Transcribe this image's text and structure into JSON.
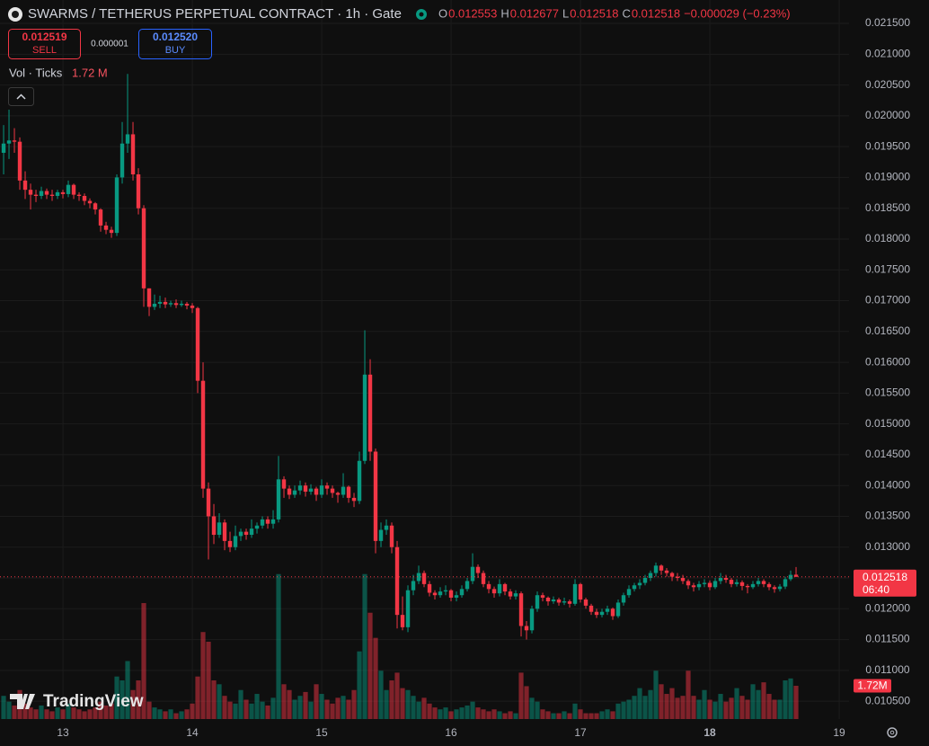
{
  "chart_data": {
    "type": "candlestick",
    "legend": {
      "title": "SWARMS / TETHERUS PERPETUAL CONTRACT · 1h · Gate",
      "ohlc": [
        {
          "label": "O",
          "value": "0.012553"
        },
        {
          "label": "H",
          "value": "0.012677"
        },
        {
          "label": "L",
          "value": "0.012518"
        },
        {
          "label": "C",
          "value": "0.012518"
        }
      ],
      "change": "−0.000029 (−0.23%)"
    },
    "trade": {
      "sell_price": "0.012519",
      "sell": "SELL",
      "spread": "0.000001",
      "buy_price": "0.012520",
      "buy": "BUY"
    },
    "volume_legend": {
      "label": "Vol · Ticks",
      "value": "1.72 M"
    },
    "logo": "TradingView",
    "up_color": "#089981",
    "down_color": "#f23645",
    "xlim": [
      -0.67,
      156.83
    ],
    "xticks": [
      {
        "value": 11,
        "label": "13"
      },
      {
        "value": 35,
        "label": "14"
      },
      {
        "value": 59,
        "label": "15"
      },
      {
        "value": 83,
        "label": "16"
      },
      {
        "value": 107,
        "label": "17"
      },
      {
        "value": 131,
        "label": "18"
      },
      {
        "value": 155,
        "label": "19"
      }
    ],
    "ylim": [
      0.01021,
      0.02188
    ],
    "yticks": [
      {
        "value": 0.0105,
        "label": "0.010500"
      },
      {
        "value": 0.011,
        "label": "0.011000"
      },
      {
        "value": 0.0115,
        "label": "0.011500"
      },
      {
        "value": 0.012,
        "label": "0.012000"
      },
      {
        "value": 0.0125,
        "label": "0.012500"
      },
      {
        "value": 0.013,
        "label": "0.013000"
      },
      {
        "value": 0.0135,
        "label": "0.013500"
      },
      {
        "value": 0.014,
        "label": "0.014000"
      },
      {
        "value": 0.0145,
        "label": "0.014500"
      },
      {
        "value": 0.015,
        "label": "0.015000"
      },
      {
        "value": 0.0155,
        "label": "0.015500"
      },
      {
        "value": 0.016,
        "label": "0.016000"
      },
      {
        "value": 0.0165,
        "label": "0.016500"
      },
      {
        "value": 0.017,
        "label": "0.017000"
      },
      {
        "value": 0.0175,
        "label": "0.017500"
      },
      {
        "value": 0.018,
        "label": "0.018000"
      },
      {
        "value": 0.0185,
        "label": "0.018500"
      },
      {
        "value": 0.019,
        "label": "0.019000"
      },
      {
        "value": 0.0195,
        "label": "0.019500"
      },
      {
        "value": 0.02,
        "label": "0.020000"
      },
      {
        "value": 0.0205,
        "label": "0.020500"
      },
      {
        "value": 0.021,
        "label": "0.021000"
      },
      {
        "value": 0.0215,
        "label": "0.021500"
      }
    ],
    "volume_lim": [
      0,
      37.2
    ],
    "price_tag": {
      "value": 0.012518,
      "label": "0.012518",
      "time": "06:40"
    },
    "volume_tag": "1.72M",
    "candles": [
      [
        0.0194,
        0.01985,
        0.01905,
        0.01955
      ],
      [
        0.01955,
        0.0201,
        0.0193,
        0.0196
      ],
      [
        0.0196,
        0.0198,
        0.0194,
        0.01958
      ],
      [
        0.01958,
        0.01965,
        0.0188,
        0.01895
      ],
      [
        0.01895,
        0.0191,
        0.01865,
        0.0188
      ],
      [
        0.0188,
        0.0189,
        0.01848,
        0.01872
      ],
      [
        0.01872,
        0.0188,
        0.0186,
        0.0187
      ],
      [
        0.0187,
        0.01885,
        0.01865,
        0.01878
      ],
      [
        0.01878,
        0.01882,
        0.01865,
        0.01872
      ],
      [
        0.01872,
        0.0188,
        0.01862,
        0.0187
      ],
      [
        0.0187,
        0.0188,
        0.01865,
        0.01876
      ],
      [
        0.01876,
        0.0188,
        0.01866,
        0.01873
      ],
      [
        0.01873,
        0.01895,
        0.01868,
        0.01888
      ],
      [
        0.01888,
        0.0189,
        0.01865,
        0.01872
      ],
      [
        0.01872,
        0.01876,
        0.01862,
        0.0187
      ],
      [
        0.0187,
        0.01874,
        0.01855,
        0.01862
      ],
      [
        0.01862,
        0.01866,
        0.0185,
        0.01858
      ],
      [
        0.01858,
        0.0186,
        0.0184,
        0.01848
      ],
      [
        0.01848,
        0.0185,
        0.01812,
        0.01822
      ],
      [
        0.01822,
        0.01828,
        0.01808,
        0.01815
      ],
      [
        0.01815,
        0.0182,
        0.01802,
        0.0181
      ],
      [
        0.0181,
        0.01905,
        0.01805,
        0.019
      ],
      [
        0.019,
        0.0199,
        0.0189,
        0.01955
      ],
      [
        0.01955,
        0.02068,
        0.0194,
        0.0197
      ],
      [
        0.0197,
        0.0199,
        0.01895,
        0.01905
      ],
      [
        0.01905,
        0.01915,
        0.0184,
        0.0185
      ],
      [
        0.0185,
        0.01855,
        0.0169,
        0.0172
      ],
      [
        0.0172,
        0.0172,
        0.01675,
        0.0169
      ],
      [
        0.0169,
        0.0171,
        0.01685,
        0.01695
      ],
      [
        0.01695,
        0.01708,
        0.01688,
        0.01698
      ],
      [
        0.01698,
        0.01705,
        0.01688,
        0.01694
      ],
      [
        0.01694,
        0.017,
        0.0169,
        0.01696
      ],
      [
        0.01696,
        0.01702,
        0.01688,
        0.01693
      ],
      [
        0.01693,
        0.017,
        0.0169,
        0.01695
      ],
      [
        0.01695,
        0.01698,
        0.01686,
        0.01692
      ],
      [
        0.01692,
        0.01696,
        0.0168,
        0.01688
      ],
      [
        0.01688,
        0.0169,
        0.0155,
        0.0157
      ],
      [
        0.0157,
        0.016,
        0.0138,
        0.01395
      ],
      [
        0.01395,
        0.01405,
        0.0128,
        0.0135
      ],
      [
        0.0135,
        0.0137,
        0.01305,
        0.0132
      ],
      [
        0.0132,
        0.01355,
        0.01315,
        0.0134
      ],
      [
        0.0134,
        0.01345,
        0.01295,
        0.0131
      ],
      [
        0.0131,
        0.01325,
        0.01292,
        0.013
      ],
      [
        0.013,
        0.01335,
        0.01295,
        0.01318
      ],
      [
        0.01318,
        0.0133,
        0.0131,
        0.01325
      ],
      [
        0.01325,
        0.0133,
        0.01312,
        0.0132
      ],
      [
        0.0132,
        0.01345,
        0.01315,
        0.0133
      ],
      [
        0.0133,
        0.0134,
        0.01322,
        0.01335
      ],
      [
        0.01335,
        0.0135,
        0.0133,
        0.01345
      ],
      [
        0.01345,
        0.0135,
        0.0133,
        0.01338
      ],
      [
        0.01338,
        0.0136,
        0.0133,
        0.01345
      ],
      [
        0.01345,
        0.01448,
        0.0134,
        0.0141
      ],
      [
        0.0141,
        0.01415,
        0.0138,
        0.01395
      ],
      [
        0.01395,
        0.014,
        0.01378,
        0.01385
      ],
      [
        0.01385,
        0.014,
        0.0138,
        0.01392
      ],
      [
        0.01392,
        0.01408,
        0.01385,
        0.014
      ],
      [
        0.014,
        0.01405,
        0.01382,
        0.0139
      ],
      [
        0.0139,
        0.01402,
        0.01385,
        0.01395
      ],
      [
        0.01395,
        0.01398,
        0.01375,
        0.01385
      ],
      [
        0.01385,
        0.0141,
        0.0138,
        0.014
      ],
      [
        0.014,
        0.01405,
        0.01385,
        0.01395
      ],
      [
        0.01395,
        0.014,
        0.0138,
        0.01388
      ],
      [
        0.01388,
        0.0139,
        0.01372,
        0.01385
      ],
      [
        0.01385,
        0.0142,
        0.0138,
        0.01398
      ],
      [
        0.01398,
        0.014,
        0.01372,
        0.0138
      ],
      [
        0.0138,
        0.01388,
        0.01365,
        0.01375
      ],
      [
        0.01375,
        0.01455,
        0.0137,
        0.0144
      ],
      [
        0.0144,
        0.01652,
        0.01435,
        0.0158
      ],
      [
        0.0158,
        0.01605,
        0.0144,
        0.01455
      ],
      [
        0.01455,
        0.0146,
        0.0129,
        0.0131
      ],
      [
        0.0131,
        0.0134,
        0.013,
        0.01328
      ],
      [
        0.01328,
        0.01345,
        0.0132,
        0.01335
      ],
      [
        0.01335,
        0.0134,
        0.0129,
        0.013
      ],
      [
        0.013,
        0.0131,
        0.01168,
        0.0119
      ],
      [
        0.0119,
        0.0122,
        0.01165,
        0.0117
      ],
      [
        0.0117,
        0.01238,
        0.01162,
        0.0123
      ],
      [
        0.0123,
        0.01255,
        0.01222,
        0.01245
      ],
      [
        0.01245,
        0.0127,
        0.0124,
        0.01258
      ],
      [
        0.01258,
        0.01262,
        0.01235,
        0.0124
      ],
      [
        0.0124,
        0.01245,
        0.0122,
        0.01226
      ],
      [
        0.01226,
        0.0123,
        0.01215,
        0.01222
      ],
      [
        0.01222,
        0.01235,
        0.01218,
        0.01228
      ],
      [
        0.01228,
        0.01238,
        0.01222,
        0.0123
      ],
      [
        0.0123,
        0.01232,
        0.01212,
        0.01218
      ],
      [
        0.01218,
        0.01228,
        0.01212,
        0.01222
      ],
      [
        0.01222,
        0.01238,
        0.01218,
        0.01232
      ],
      [
        0.01232,
        0.0125,
        0.01228,
        0.01245
      ],
      [
        0.01245,
        0.0129,
        0.0124,
        0.01268
      ],
      [
        0.01268,
        0.01272,
        0.0125,
        0.01258
      ],
      [
        0.01258,
        0.01262,
        0.01235,
        0.0124
      ],
      [
        0.0124,
        0.01245,
        0.01225,
        0.01232
      ],
      [
        0.01232,
        0.01236,
        0.01218,
        0.01225
      ],
      [
        0.01225,
        0.01248,
        0.0122,
        0.0124
      ],
      [
        0.0124,
        0.01242,
        0.01222,
        0.01228
      ],
      [
        0.01228,
        0.01232,
        0.01215,
        0.0122
      ],
      [
        0.0122,
        0.0123,
        0.01215,
        0.01225
      ],
      [
        0.01225,
        0.01228,
        0.01155,
        0.01172
      ],
      [
        0.01172,
        0.0118,
        0.0115,
        0.01165
      ],
      [
        0.01165,
        0.01205,
        0.0116,
        0.012
      ],
      [
        0.012,
        0.01228,
        0.01195,
        0.01222
      ],
      [
        0.01222,
        0.01226,
        0.01212,
        0.01218
      ],
      [
        0.01218,
        0.0122,
        0.01205,
        0.01212
      ],
      [
        0.01212,
        0.0122,
        0.01208,
        0.01215
      ],
      [
        0.01215,
        0.01218,
        0.01205,
        0.0121
      ],
      [
        0.0121,
        0.01218,
        0.01206,
        0.01212
      ],
      [
        0.01212,
        0.01215,
        0.01202,
        0.01208
      ],
      [
        0.01208,
        0.01248,
        0.01205,
        0.0124
      ],
      [
        0.0124,
        0.01242,
        0.0121,
        0.01215
      ],
      [
        0.01215,
        0.01218,
        0.012,
        0.01205
      ],
      [
        0.01205,
        0.01208,
        0.0119,
        0.01195
      ],
      [
        0.01195,
        0.012,
        0.01185,
        0.0119
      ],
      [
        0.0119,
        0.012,
        0.01186,
        0.01195
      ],
      [
        0.01195,
        0.01205,
        0.0119,
        0.012
      ],
      [
        0.012,
        0.01202,
        0.01182,
        0.01188
      ],
      [
        0.01188,
        0.01215,
        0.01185,
        0.0121
      ],
      [
        0.0121,
        0.01226,
        0.01205,
        0.01222
      ],
      [
        0.01222,
        0.01238,
        0.01218,
        0.01232
      ],
      [
        0.01232,
        0.01242,
        0.01228,
        0.01238
      ],
      [
        0.01238,
        0.01248,
        0.01232,
        0.01242
      ],
      [
        0.01242,
        0.01255,
        0.01238,
        0.0125
      ],
      [
        0.0125,
        0.01262,
        0.01245,
        0.01258
      ],
      [
        0.01258,
        0.01275,
        0.01252,
        0.0127
      ],
      [
        0.0127,
        0.01272,
        0.01255,
        0.01262
      ],
      [
        0.01262,
        0.01266,
        0.01252,
        0.01258
      ],
      [
        0.01258,
        0.0126,
        0.01245,
        0.01252
      ],
      [
        0.01252,
        0.01258,
        0.01245,
        0.0125
      ],
      [
        0.0125,
        0.01255,
        0.0124,
        0.01245
      ],
      [
        0.01245,
        0.01248,
        0.01232,
        0.01238
      ],
      [
        0.01238,
        0.01242,
        0.01228,
        0.01235
      ],
      [
        0.01235,
        0.01245,
        0.0123,
        0.0124
      ],
      [
        0.0124,
        0.01248,
        0.01235,
        0.01242
      ],
      [
        0.01242,
        0.01246,
        0.0123,
        0.01235
      ],
      [
        0.01235,
        0.0125,
        0.01232,
        0.01245
      ],
      [
        0.01245,
        0.01258,
        0.0124,
        0.0125
      ],
      [
        0.0125,
        0.01255,
        0.01242,
        0.01247
      ],
      [
        0.01247,
        0.0125,
        0.01235,
        0.0124
      ],
      [
        0.0124,
        0.01248,
        0.01236,
        0.01243
      ],
      [
        0.01243,
        0.01246,
        0.0123,
        0.01237
      ],
      [
        0.01237,
        0.0124,
        0.01225,
        0.01235
      ],
      [
        0.01235,
        0.01245,
        0.01232,
        0.0124
      ],
      [
        0.0124,
        0.0125,
        0.01236,
        0.01245
      ],
      [
        0.01245,
        0.01248,
        0.01235,
        0.0124
      ],
      [
        0.0124,
        0.01243,
        0.0123,
        0.01235
      ],
      [
        0.01235,
        0.01238,
        0.01226,
        0.01232
      ],
      [
        0.01232,
        0.0124,
        0.01228,
        0.01236
      ],
      [
        0.01236,
        0.01252,
        0.01232,
        0.01248
      ],
      [
        0.01248,
        0.01262,
        0.01245,
        0.01255
      ],
      [
        0.012553,
        0.012677,
        0.012518,
        0.012518
      ]
    ],
    "volume": [
      1.2,
      0.9,
      0.7,
      1.5,
      0.8,
      0.6,
      0.5,
      0.7,
      0.5,
      0.4,
      0.6,
      0.5,
      0.8,
      0.6,
      0.5,
      0.4,
      0.5,
      0.6,
      0.9,
      0.7,
      0.8,
      2.2,
      2.0,
      3.0,
      1.5,
      2.0,
      6.0,
      0.9,
      0.6,
      0.5,
      0.4,
      0.5,
      0.3,
      0.4,
      0.5,
      0.8,
      2.2,
      4.5,
      4.0,
      2.0,
      1.8,
      1.2,
      0.9,
      0.8,
      1.5,
      1.0,
      0.8,
      1.3,
      0.9,
      0.7,
      1.1,
      7.5,
      1.8,
      1.5,
      1.0,
      1.2,
      1.4,
      0.9,
      1.8,
      1.3,
      1.0,
      0.8,
      1.1,
      1.2,
      1.0,
      1.5,
      3.5,
      7.5,
      5.5,
      4.2,
      2.5,
      1.5,
      2.0,
      2.4,
      1.6,
      1.5,
      1.2,
      0.9,
      1.1,
      0.8,
      0.6,
      0.5,
      0.6,
      0.4,
      0.5,
      0.6,
      0.7,
      0.9,
      0.6,
      0.5,
      0.4,
      0.5,
      0.4,
      0.3,
      0.4,
      0.3,
      2.4,
      1.7,
      1.1,
      0.9,
      0.5,
      0.4,
      0.3,
      0.3,
      0.4,
      0.3,
      0.8,
      0.5,
      0.3,
      0.3,
      0.3,
      0.4,
      0.5,
      0.4,
      0.8,
      0.9,
      1.0,
      1.2,
      1.6,
      1.2,
      1.5,
      2.5,
      1.8,
      1.3,
      1.6,
      1.1,
      1.2,
      2.5,
      1.2,
      1.0,
      1.5,
      1.0,
      0.9,
      1.3,
      0.9,
      1.1,
      1.6,
      1.2,
      1.0,
      1.8,
      1.5,
      1.9,
      1.3,
      1.0,
      1.0,
      2.0,
      2.1,
      1.72
    ]
  }
}
